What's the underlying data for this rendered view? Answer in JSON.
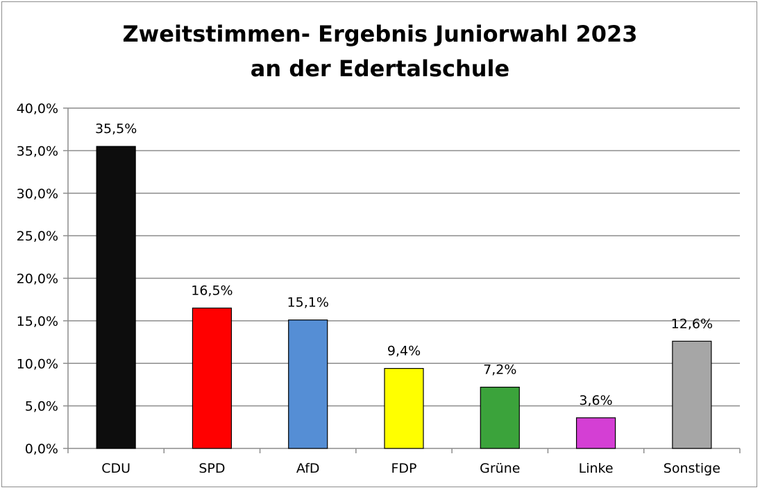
{
  "chart_data": {
    "type": "bar",
    "title_lines": [
      "Zweitstimmen- Ergebnis Juniorwahl 2023",
      "an der Edertalschule"
    ],
    "xlabel": "",
    "ylabel": "",
    "categories": [
      "CDU",
      "SPD",
      "AfD",
      "FDP",
      "Grüne",
      "Linke",
      "Sonstige"
    ],
    "values": [
      35.5,
      16.5,
      15.1,
      9.4,
      7.2,
      3.6,
      12.6
    ],
    "data_labels": [
      "35,5%",
      "16,5%",
      "15,1%",
      "9,4%",
      "7,2%",
      "3,6%",
      "12,6%"
    ],
    "colors": [
      "#0d0d0d",
      "#ff0000",
      "#558ed5",
      "#ffff00",
      "#3ba33b",
      "#d43fd4",
      "#a6a6a6"
    ],
    "ylim": [
      0,
      40
    ],
    "yticks": [
      0,
      5,
      10,
      15,
      20,
      25,
      30,
      35,
      40
    ],
    "ytick_labels": [
      "0,0%",
      "5,0%",
      "10,0%",
      "15,0%",
      "20,0%",
      "25,0%",
      "30,0%",
      "35,0%",
      "40,0%"
    ],
    "grid": true,
    "legend": "none"
  }
}
